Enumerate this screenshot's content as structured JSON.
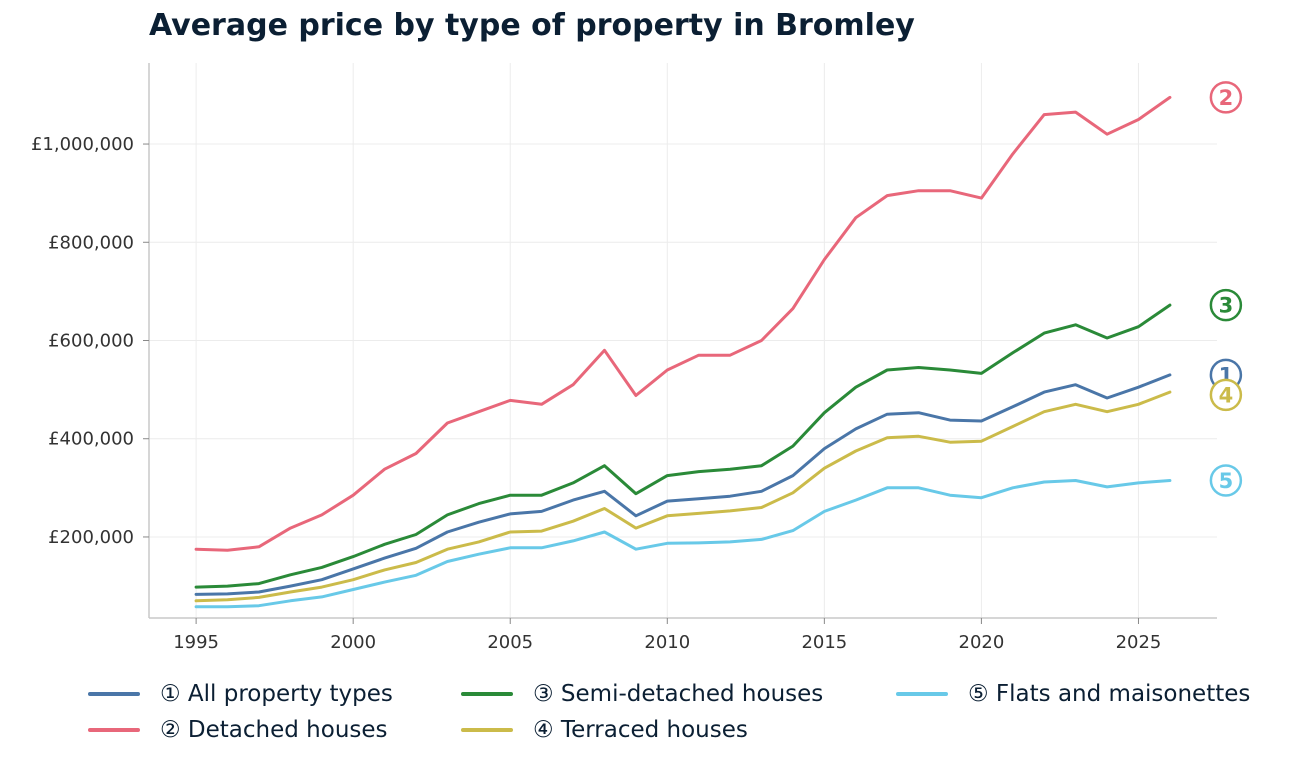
{
  "title": "Average price by type of property in Bromley",
  "chart_data": {
    "type": "line",
    "title": "Average price by type of property in Bromley",
    "xlabel": "",
    "ylabel": "",
    "xlim": [
      1993.5,
      2027.5
    ],
    "ylim": [
      35000,
      1165000
    ],
    "x_ticks": [
      1995,
      2000,
      2005,
      2010,
      2015,
      2020,
      2025
    ],
    "y_ticks": [
      200000,
      400000,
      600000,
      800000,
      1000000
    ],
    "y_tick_labels": [
      "£200,000",
      "£400,000",
      "£600,000",
      "£800,000",
      "£1,000,000"
    ],
    "grid": true,
    "legend_position": "bottom",
    "x": [
      1995,
      1996,
      1997,
      1998,
      1999,
      2000,
      2001,
      2002,
      2003,
      2004,
      2005,
      2006,
      2007,
      2008,
      2009,
      2010,
      2011,
      2012,
      2013,
      2014,
      2015,
      2016,
      2017,
      2018,
      2019,
      2020,
      2021,
      2022,
      2023,
      2024,
      2025,
      2026
    ],
    "series": [
      {
        "name": "① All property types",
        "end_marker": "1",
        "color": "#4a76a8",
        "values": [
          83000,
          84000,
          88000,
          100000,
          113000,
          135000,
          157000,
          177000,
          210000,
          230000,
          247000,
          252000,
          275000,
          293000,
          243000,
          273000,
          278000,
          283000,
          293000,
          325000,
          380000,
          420000,
          450000,
          453000,
          438000,
          436000,
          465000,
          495000,
          510000,
          483000,
          505000,
          530000
        ]
      },
      {
        "name": "② Detached houses",
        "end_marker": "2",
        "color": "#e8677a",
        "values": [
          175000,
          173000,
          180000,
          218000,
          245000,
          285000,
          338000,
          370000,
          432000,
          455000,
          478000,
          470000,
          510000,
          580000,
          488000,
          540000,
          570000,
          570000,
          600000,
          665000,
          765000,
          850000,
          895000,
          905000,
          905000,
          890000,
          980000,
          1060000,
          1065000,
          1020000,
          1050000,
          1095000
        ]
      },
      {
        "name": "③ Semi-detached houses",
        "end_marker": "3",
        "color": "#2a8a38",
        "values": [
          98000,
          100000,
          105000,
          123000,
          138000,
          160000,
          185000,
          205000,
          245000,
          268000,
          285000,
          285000,
          310000,
          345000,
          288000,
          325000,
          333000,
          338000,
          345000,
          385000,
          453000,
          505000,
          540000,
          545000,
          540000,
          533000,
          575000,
          615000,
          632000,
          605000,
          628000,
          672000
        ]
      },
      {
        "name": "④ Terraced houses",
        "end_marker": "4",
        "color": "#cbbb4a",
        "values": [
          70000,
          72000,
          77000,
          88000,
          98000,
          113000,
          133000,
          148000,
          175000,
          190000,
          210000,
          212000,
          232000,
          258000,
          218000,
          243000,
          248000,
          253000,
          260000,
          290000,
          340000,
          375000,
          402000,
          405000,
          393000,
          395000,
          425000,
          455000,
          470000,
          455000,
          470000,
          495000
        ]
      },
      {
        "name": "⑤ Flats and maisonettes",
        "end_marker": "5",
        "color": "#68c9e8",
        "values": [
          58000,
          58000,
          60000,
          70000,
          78000,
          93000,
          108000,
          122000,
          150000,
          165000,
          178000,
          178000,
          192000,
          210000,
          175000,
          187000,
          188000,
          190000,
          195000,
          213000,
          252000,
          275000,
          300000,
          300000,
          285000,
          280000,
          300000,
          312000,
          315000,
          302000,
          310000,
          315000
        ]
      }
    ]
  }
}
